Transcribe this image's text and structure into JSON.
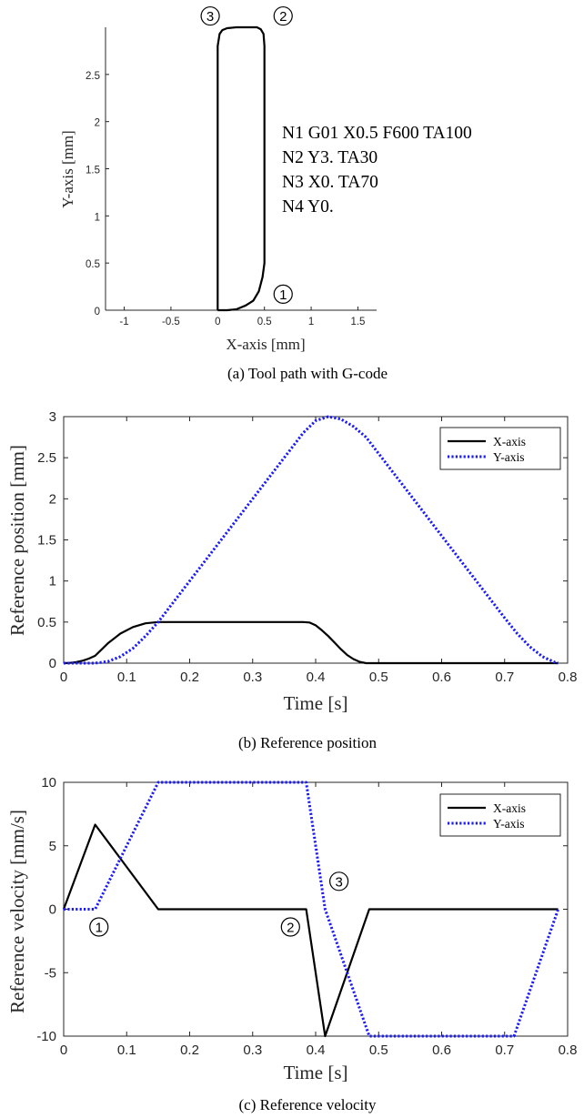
{
  "chart_data": [
    {
      "id": "a",
      "type": "line",
      "caption": "(a) Tool path with G-code",
      "xlabel": "X-axis [mm]",
      "ylabel": "Y-axis [mm]",
      "xlim": [
        -1.2,
        1.7
      ],
      "ylim": [
        0,
        3
      ],
      "xticks": [
        -1,
        -0.5,
        0,
        0.5,
        1,
        1.5
      ],
      "xtick_labels": [
        "-1",
        "-0.5",
        "0",
        "0.5",
        "1",
        "1.5"
      ],
      "yticks": [
        0,
        0.5,
        1,
        1.5,
        2,
        2.5
      ],
      "ytick_labels": [
        "0",
        "0.5",
        "1",
        "1.5",
        "2",
        "2.5"
      ],
      "series": [
        {
          "color": "#000000",
          "style": "solid",
          "x": [
            0,
            0.1,
            0.2,
            0.3,
            0.38,
            0.44,
            0.48,
            0.5,
            0.5,
            0.5,
            0.49,
            0.46,
            0.42,
            0.36,
            0.3,
            0.2,
            0.1,
            0.05,
            0.02,
            0,
            0,
            0
          ],
          "y": [
            0,
            0,
            0.01,
            0.05,
            0.1,
            0.2,
            0.35,
            0.5,
            1.5,
            2.8,
            2.93,
            2.98,
            3.0,
            3.0,
            3.0,
            3.0,
            2.99,
            2.97,
            2.93,
            2.8,
            1.5,
            0
          ]
        }
      ],
      "gcode": [
        "N1 G01 X0.5 F600 TA100",
        "N2 Y3. TA30",
        "N3 X0. TA70",
        "N4 Y0."
      ],
      "markers": [
        {
          "label": "1",
          "x": 0.7,
          "y": 0.17
        },
        {
          "label": "2",
          "x": 0.7,
          "y": 3.12
        },
        {
          "label": "3",
          "x": -0.08,
          "y": 3.12
        }
      ]
    },
    {
      "id": "b",
      "type": "line",
      "caption": "(b) Reference position",
      "xlabel": "Time [s]",
      "ylabel": "Reference position [mm]",
      "xlim": [
        0,
        0.8
      ],
      "ylim": [
        0,
        3
      ],
      "xticks": [
        0,
        0.1,
        0.2,
        0.3,
        0.4,
        0.5,
        0.6,
        0.7,
        0.8
      ],
      "xtick_labels": [
        "0",
        "0.1",
        "0.2",
        "0.3",
        "0.4",
        "0.5",
        "0.6",
        "0.7",
        "0.8"
      ],
      "yticks": [
        0,
        0.5,
        1,
        1.5,
        2,
        2.5,
        3
      ],
      "ytick_labels": [
        "0",
        "0.5",
        "1",
        "1.5",
        "2",
        "2.5",
        "3"
      ],
      "legend": {
        "position": "top-right",
        "entries": [
          "X-axis",
          "Y-axis"
        ]
      },
      "series": [
        {
          "name": "X-axis",
          "color": "#000000",
          "style": "solid",
          "x": [
            0,
            0.01,
            0.02,
            0.03,
            0.04,
            0.05,
            0.07,
            0.09,
            0.11,
            0.13,
            0.15,
            0.2,
            0.3,
            0.38,
            0.39,
            0.4,
            0.41,
            0.42,
            0.43,
            0.44,
            0.45,
            0.46,
            0.47,
            0.48,
            0.55,
            0.6,
            0.7,
            0.785
          ],
          "y": [
            0,
            0.003,
            0.013,
            0.03,
            0.055,
            0.09,
            0.24,
            0.36,
            0.44,
            0.485,
            0.5,
            0.5,
            0.5,
            0.5,
            0.495,
            0.46,
            0.4,
            0.33,
            0.25,
            0.17,
            0.1,
            0.05,
            0.015,
            0,
            0,
            0,
            0,
            0
          ]
        },
        {
          "name": "Y-axis",
          "color": "#1a1aff",
          "style": "dotted",
          "x": [
            0,
            0.05,
            0.07,
            0.09,
            0.11,
            0.13,
            0.15,
            0.2,
            0.25,
            0.3,
            0.35,
            0.38,
            0.4,
            0.42,
            0.44,
            0.46,
            0.48,
            0.55,
            0.6,
            0.65,
            0.7,
            0.72,
            0.74,
            0.76,
            0.78,
            0.785
          ],
          "y": [
            0,
            0,
            0.02,
            0.08,
            0.18,
            0.33,
            0.5,
            1,
            1.5,
            2,
            2.5,
            2.8,
            2.95,
            3.0,
            2.97,
            2.88,
            2.75,
            2.05,
            1.55,
            1.05,
            0.55,
            0.36,
            0.2,
            0.08,
            0.01,
            0
          ]
        }
      ]
    },
    {
      "id": "c",
      "type": "line",
      "caption": "(c) Reference velocity",
      "xlabel": "Time [s]",
      "ylabel": "Reference velocity [mm/s]",
      "xlim": [
        0,
        0.8
      ],
      "ylim": [
        -10,
        10
      ],
      "xticks": [
        0,
        0.1,
        0.2,
        0.3,
        0.4,
        0.5,
        0.6,
        0.7,
        0.8
      ],
      "xtick_labels": [
        "0",
        "0.1",
        "0.2",
        "0.3",
        "0.4",
        "0.5",
        "0.6",
        "0.7",
        "0.8"
      ],
      "yticks": [
        -10,
        -5,
        0,
        5,
        10
      ],
      "ytick_labels": [
        "-10",
        "-5",
        "0",
        "5",
        "10"
      ],
      "legend": {
        "position": "top-right",
        "entries": [
          "X-axis",
          "Y-axis"
        ]
      },
      "series": [
        {
          "name": "X-axis",
          "color": "#000000",
          "style": "solid",
          "x": [
            0,
            0.05,
            0.15,
            0.385,
            0.415,
            0.485,
            0.785
          ],
          "y": [
            0,
            6.67,
            0,
            0,
            -10,
            0,
            0
          ]
        },
        {
          "name": "Y-axis",
          "color": "#1a1aff",
          "style": "dotted",
          "x": [
            0,
            0.05,
            0.15,
            0.385,
            0.415,
            0.485,
            0.715,
            0.785
          ],
          "y": [
            0,
            0,
            10,
            10,
            0,
            -10,
            -10,
            0
          ]
        }
      ],
      "markers": [
        {
          "label": "1",
          "x": 0.056,
          "y": -1.4
        },
        {
          "label": "2",
          "x": 0.36,
          "y": -1.4
        },
        {
          "label": "3",
          "x": 0.437,
          "y": 2.2
        }
      ]
    }
  ]
}
